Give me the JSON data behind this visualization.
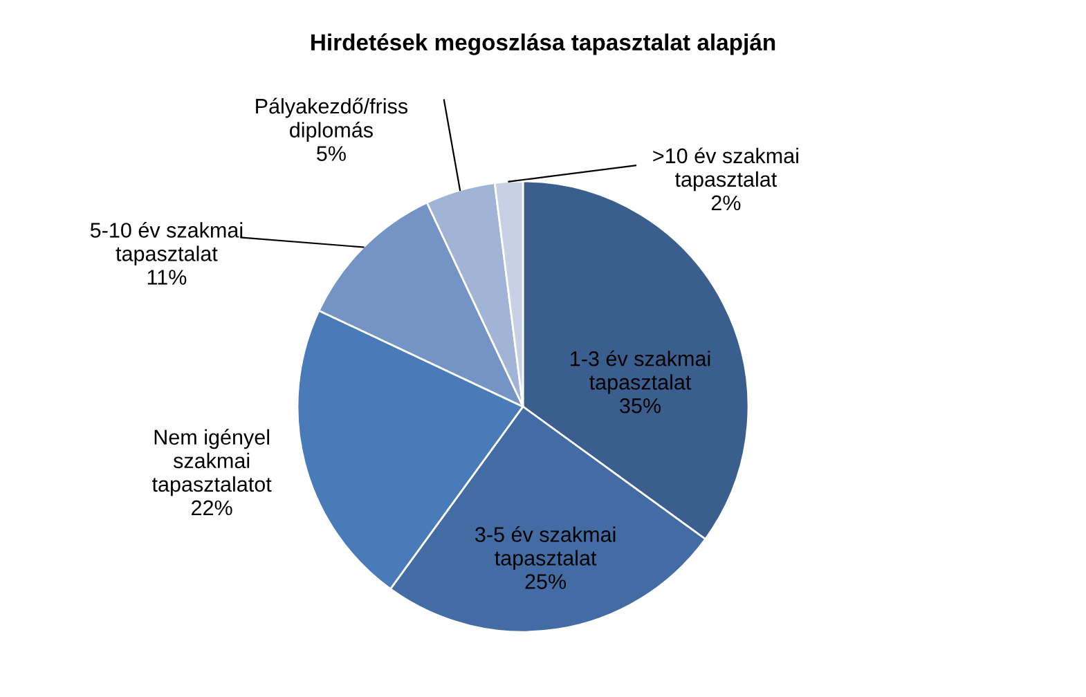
{
  "chart_data": {
    "type": "pie",
    "title": "Hirdetések megoszlása tapasztalat alapján",
    "categories": [
      "1-3 év szakmai\ntapasztalat",
      "3-5 év szakmai\ntapasztalat",
      "Nem igényel\nszakmai\ntapasztalatot",
      "5-10 év szakmai\ntapasztalat",
      "Pályakezdő/friss\ndiplomás",
      ">10 év szakmai\ntapasztalat"
    ],
    "values": [
      35,
      25,
      22,
      11,
      5,
      2
    ],
    "value_labels": [
      "35%",
      "25%",
      "22%",
      "11%",
      "5%",
      "2%"
    ],
    "colors": [
      "#3a5e8e",
      "#426ca3",
      "#4a7bb9",
      "#7594c6",
      "#a2b4d6",
      "#c7d0e5"
    ]
  }
}
